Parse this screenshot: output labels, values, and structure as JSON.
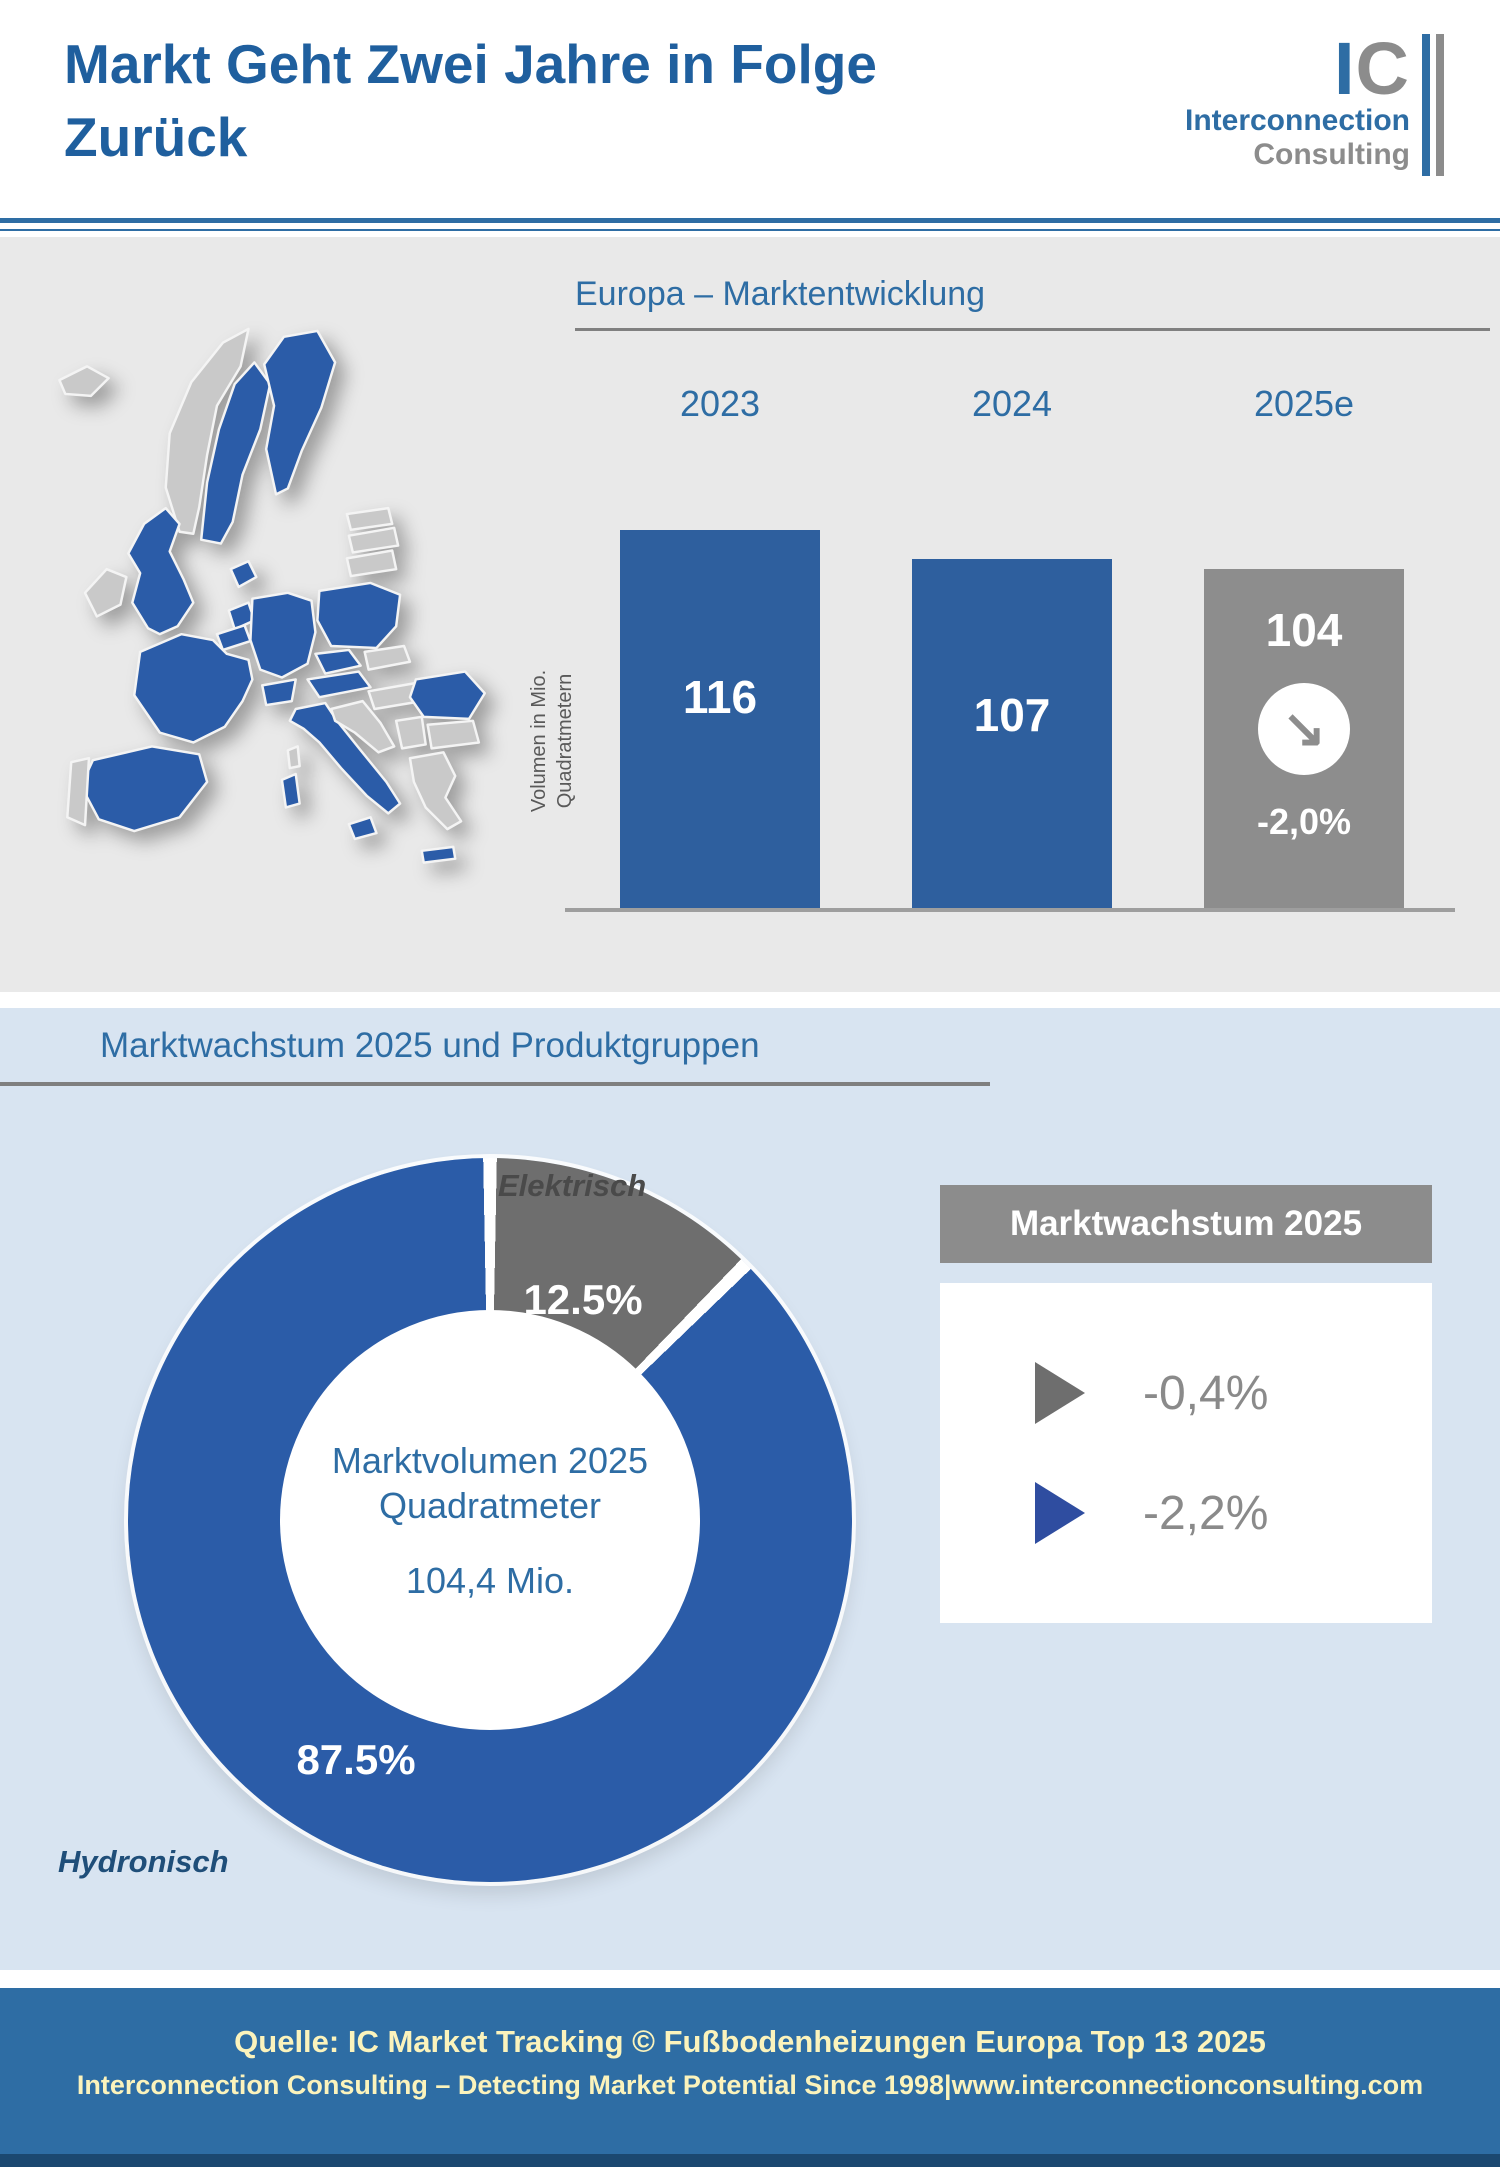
{
  "header": {
    "title_line1": "Markt Geht Zwei Jahre in Folge",
    "title_line2": "Zurück",
    "logo": {
      "mark_i": "I",
      "mark_c": "C",
      "line1": "Interconnection",
      "line2": "Consulting"
    }
  },
  "chart_data": [
    {
      "type": "bar",
      "title": "Europa – Marktentwicklung",
      "categories": [
        "2023",
        "2024",
        "2025e"
      ],
      "values": [
        116,
        107,
        104
      ],
      "bar_colors": [
        "#2E5F9E",
        "#2E5F9E",
        "#8D8D8D"
      ],
      "ylabel": "Volumen in Mio. Quadratmetern",
      "ylim": [
        0,
        120
      ],
      "grid": false,
      "change_label": "-2,0%",
      "change_bar": "2025e"
    },
    {
      "type": "pie",
      "title": "Marktwachstum 2025 und Produktgruppen",
      "segments": [
        {
          "label": "Hydronisch",
          "value": 87.5,
          "display": "87.5%",
          "color": "#2B5CA8",
          "growth": "-2,2%"
        },
        {
          "label": "Elektrisch",
          "value": 12.5,
          "display": "12.5%",
          "color": "#6E6E6E",
          "growth": "-0,4%"
        }
      ],
      "center_lines": [
        "Marktvolumen 2025",
        "Quadratmeter",
        "104,4 Mio."
      ],
      "legend_position": "right"
    }
  ],
  "growth_box": {
    "title": "Marktwachstum 2025"
  },
  "icons": {
    "trend_down": "↘"
  },
  "colors": {
    "primary_blue": "#2E6DA4",
    "heading_blue": "#1F5F9E",
    "bar_blue": "#2E5F9E",
    "bar_gray": "#8D8D8D",
    "donut_blue": "#2B5CA8",
    "donut_gray": "#6E6E6E",
    "arrow_blue": "#2F4DA0",
    "map_highlight": "#2B5CA8",
    "map_base": "#C9C9C9",
    "section_gray_bg": "#E9E9E9",
    "section_blue_bg": "#D8E4F1",
    "footer_bg": "#2E6DA4",
    "footer_text": "#FBF3BC"
  },
  "footer": {
    "line1": "Quelle: IC Market Tracking © Fußbodenheizungen Europa Top 13 2025",
    "line2": "Interconnection Consulting – Detecting Market Potential Since 1998|www.interconnectionconsulting.com"
  }
}
